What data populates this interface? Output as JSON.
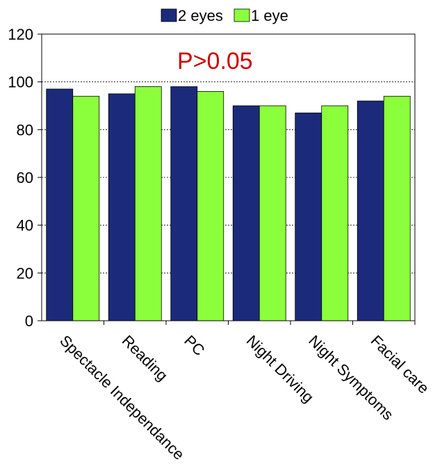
{
  "chart_data": {
    "type": "bar",
    "title": "",
    "xlabel": "",
    "ylabel": "",
    "categories": [
      "Spectacle Independance",
      "Reading",
      "PC",
      "Night Driving",
      "Night Symptoms",
      "Facial care"
    ],
    "series": [
      {
        "name": "2 eyes",
        "color": "#1b2a7a",
        "values": [
          97,
          95,
          98,
          90,
          87,
          92
        ]
      },
      {
        "name": "1 eye",
        "color": "#8cff3c",
        "values": [
          94,
          98,
          96,
          90,
          90,
          94
        ]
      }
    ],
    "ylim": [
      0,
      120
    ],
    "yticks": [
      0,
      20,
      40,
      60,
      80,
      100,
      120
    ],
    "grid": true,
    "legend_position": "top-center",
    "annotation": {
      "text": "P>0.05",
      "color": "#cc0000"
    }
  }
}
